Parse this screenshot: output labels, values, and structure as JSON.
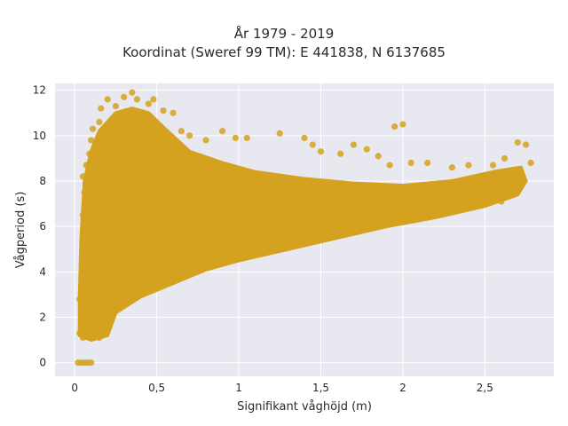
{
  "chart_data": {
    "type": "scatter",
    "title": "År 1979 - 2019",
    "subtitle": "Koordinat (Sweref 99 TM): E 441838, N 6137685",
    "xlabel": "Signifikant våghöjd (m)",
    "ylabel": "Vågperiod (s)",
    "xlim": [
      -0.12,
      2.92
    ],
    "ylim": [
      -0.6,
      12.3
    ],
    "x_ticks": [
      0,
      0.5,
      1,
      1.5,
      2,
      2.5
    ],
    "x_tick_labels": [
      "0",
      "0,5",
      "1",
      "1,5",
      "2",
      "2,5"
    ],
    "y_ticks": [
      0,
      2,
      4,
      6,
      8,
      10,
      12
    ],
    "y_tick_labels": [
      "0",
      "2",
      "4",
      "6",
      "8",
      "10",
      "12"
    ],
    "grid": true,
    "legend": "none",
    "colors": {
      "marker": "#d4a21f",
      "plot_background": "#e8e8f0",
      "grid": "#ffffff",
      "text": "#2a2a2a"
    },
    "points": [
      [
        0.02,
        0
      ],
      [
        0.04,
        0
      ],
      [
        0.06,
        0
      ],
      [
        0.08,
        0
      ],
      [
        0.1,
        0
      ],
      [
        0.03,
        1.3
      ],
      [
        0.05,
        1.1
      ],
      [
        0.08,
        1.6
      ],
      [
        0.12,
        1.2
      ],
      [
        0.15,
        1.1
      ],
      [
        0.18,
        1.3
      ],
      [
        0.2,
        1.8
      ],
      [
        0.03,
        2.8
      ],
      [
        0.06,
        3.5
      ],
      [
        0.05,
        4.5
      ],
      [
        0.06,
        5.5
      ],
      [
        0.05,
        6.5
      ],
      [
        0.06,
        7.5
      ],
      [
        0.05,
        8.2
      ],
      [
        0.07,
        8.7
      ],
      [
        0.09,
        9.2
      ],
      [
        0.1,
        9.8
      ],
      [
        0.11,
        10.3
      ],
      [
        0.15,
        10.6
      ],
      [
        0.16,
        11.2
      ],
      [
        0.2,
        11.6
      ],
      [
        0.25,
        11.3
      ],
      [
        0.3,
        11.7
      ],
      [
        0.35,
        11.9
      ],
      [
        0.38,
        11.6
      ],
      [
        0.45,
        11.4
      ],
      [
        0.48,
        11.6
      ],
      [
        0.54,
        11.1
      ],
      [
        0.6,
        11.0
      ],
      [
        0.65,
        10.2
      ],
      [
        0.7,
        10.0
      ],
      [
        0.8,
        9.8
      ],
      [
        0.9,
        10.2
      ],
      [
        0.98,
        9.9
      ],
      [
        1.05,
        9.9
      ],
      [
        1.25,
        10.1
      ],
      [
        1.4,
        9.9
      ],
      [
        1.45,
        9.6
      ],
      [
        1.5,
        9.3
      ],
      [
        1.62,
        9.2
      ],
      [
        1.7,
        9.6
      ],
      [
        1.78,
        9.4
      ],
      [
        1.85,
        9.1
      ],
      [
        1.92,
        8.7
      ],
      [
        1.95,
        10.4
      ],
      [
        2.0,
        10.5
      ],
      [
        2.05,
        8.8
      ],
      [
        2.15,
        8.8
      ],
      [
        2.3,
        8.6
      ],
      [
        2.4,
        8.7
      ],
      [
        2.55,
        8.7
      ],
      [
        2.62,
        9.0
      ],
      [
        2.7,
        9.7
      ],
      [
        2.75,
        9.6
      ],
      [
        2.78,
        8.8
      ],
      [
        2.7,
        8.3
      ],
      [
        0.22,
        2.5
      ],
      [
        0.3,
        2.8
      ],
      [
        0.4,
        3.1
      ],
      [
        0.5,
        3.4
      ],
      [
        0.6,
        3.7
      ],
      [
        0.7,
        4.0
      ],
      [
        0.8,
        4.3
      ],
      [
        0.9,
        4.5
      ],
      [
        1.0,
        4.7
      ],
      [
        1.2,
        5.0
      ],
      [
        1.4,
        5.3
      ],
      [
        1.6,
        5.6
      ],
      [
        1.8,
        5.9
      ],
      [
        2.0,
        6.2
      ],
      [
        2.2,
        6.5
      ],
      [
        2.4,
        6.8
      ],
      [
        2.6,
        7.1
      ],
      [
        0.25,
        6.8
      ],
      [
        0.35,
        7.3
      ],
      [
        0.45,
        7.1
      ],
      [
        0.55,
        7.0
      ],
      [
        0.65,
        7.4
      ],
      [
        0.75,
        7.2
      ],
      [
        0.85,
        7.0
      ],
      [
        0.95,
        7.3
      ],
      [
        1.1,
        7.2
      ],
      [
        1.3,
        7.4
      ],
      [
        1.5,
        7.3
      ],
      [
        1.7,
        7.5
      ],
      [
        1.9,
        7.6
      ],
      [
        2.1,
        7.8
      ],
      [
        2.3,
        7.9
      ],
      [
        2.5,
        8.1
      ]
    ]
  }
}
